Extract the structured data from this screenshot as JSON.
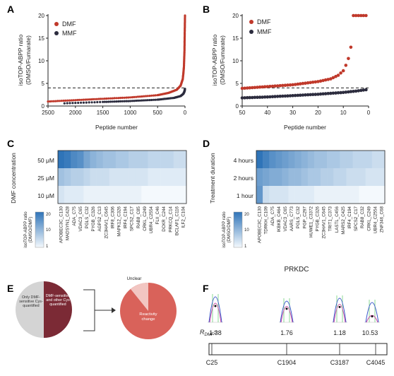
{
  "panels": {
    "A": {
      "label": "A",
      "ylabel_line1": "isoTOP-ABPP ratio",
      "ylabel_line2": "(DMSO/Fumarate)",
      "xlabel": "Peptide number",
      "xticks": [
        "2500",
        "2000",
        "1500",
        "1000",
        "500",
        "0"
      ],
      "yticks": [
        "0",
        "5",
        "10",
        "15",
        "20"
      ],
      "legend": [
        "DMF",
        "MMF"
      ]
    },
    "B": {
      "label": "B",
      "ylabel_line1": "isoTOP-ABPP ratio",
      "ylabel_line2": "(DMSO/Fumarate)",
      "xlabel": "Peptide number",
      "xticks": [
        "50",
        "40",
        "30",
        "20",
        "10",
        "0"
      ],
      "yticks": [
        "0",
        "5",
        "10",
        "15",
        "20"
      ],
      "legend": [
        "DMF",
        "MMF"
      ]
    },
    "C": {
      "label": "C",
      "ylabel": "DMF concentration",
      "rows": [
        "50 μM",
        "25 μM",
        "10 μM"
      ],
      "genes": [
        "APOBEC3C_C130",
        "MADSYN1_C428",
        "ADA_C75",
        "VDAC3_C65",
        "PGLS_C32",
        "PYGB_C326",
        "AGPS2_C13",
        "ZC3HAV1_C645",
        "IRF8_C306",
        "MAPK12_C326",
        "IRF4_C194",
        "SPCS2_C17",
        "RAB8_C85",
        "CRKL_C249",
        "UBR4_C2554",
        "FLII_C46",
        "DCKR_C244",
        "PRKCQ_C14",
        "BCLAF1_C116",
        "ILF2_C104"
      ],
      "colorbar_label_line1": "isoTOP-ABPP ratio",
      "colorbar_label_line2": "(DMSO/DMF)",
      "colorbar_ticks": [
        "20",
        "10",
        "1"
      ]
    },
    "D": {
      "label": "D",
      "ylabel": "Treatment duration",
      "rows": [
        "4 hours",
        "2 hours",
        "1 hour"
      ],
      "genes": [
        "APOBEC3C_C130",
        "TDRKH_C109",
        "ADA_C75",
        "IKBKB_C464",
        "VDAC3_C65",
        "AARS_C773",
        "PGLS_C32",
        "PGP_C297",
        "HUWE1_C3372",
        "PYGB_C326",
        "ZC3HAV1_C645",
        "TRIT1_C373",
        "LASTL_C456",
        "MARS2_C425",
        "IRF4_C194",
        "SPCS2_C17",
        "RAB8_C32",
        "CRKL_C249",
        "UBR4_C2554",
        "ZNF346_C68"
      ],
      "colorbar_label_line1": "isoTOP-ABPP ratio",
      "colorbar_label_line2": "(DMSO/DMF)",
      "colorbar_ticks": [
        "20",
        "10",
        "1"
      ]
    },
    "E": {
      "label": "E",
      "slice_gray": "Only DMF-sensitive Cys-quantified",
      "slice_dark": "DMF-sensitive and other Cys quantified",
      "unclear": "Unclear",
      "reactivity": "Reactivity change"
    },
    "F": {
      "label": "F",
      "title": "PRKDC",
      "ratio_label": "R",
      "ratio_sub": "DMF",
      "ratio_eq": "=",
      "values": [
        "1.38",
        "1.76",
        "1.18",
        "10.53"
      ],
      "sites": [
        "C25",
        "C1904",
        "C3187",
        "C4045"
      ]
    }
  },
  "chart_data": [
    {
      "type": "scatter",
      "panel": "A",
      "xlabel": "Peptide number",
      "ylabel": "isoTOP-ABPP ratio (DMSO/Fumarate)",
      "xlim": [
        2500,
        0
      ],
      "ylim": [
        0,
        20
      ],
      "threshold": 4,
      "series": [
        {
          "name": "DMF",
          "color": "#c0392b",
          "x": [
            2500,
            2000,
            1500,
            1000,
            500,
            300,
            150,
            80,
            40,
            20,
            10,
            5,
            0
          ],
          "values": [
            1.0,
            1.3,
            1.6,
            1.9,
            2.4,
            2.9,
            3.6,
            4.5,
            6,
            8.5,
            12,
            16,
            20
          ]
        },
        {
          "name": "MMF",
          "color": "#2c2c3e",
          "x": [
            2200,
            1500,
            1000,
            500,
            200,
            80,
            30,
            10,
            0
          ],
          "values": [
            0.6,
            0.9,
            1.1,
            1.4,
            1.8,
            2.2,
            2.7,
            3.2,
            3.8
          ]
        }
      ]
    },
    {
      "type": "scatter",
      "panel": "B",
      "xlabel": "Peptide number",
      "ylabel": "isoTOP-ABPP ratio (DMSO/Fumarate)",
      "xlim": [
        50,
        0
      ],
      "ylim": [
        0,
        20
      ],
      "threshold": 4,
      "series": [
        {
          "name": "DMF",
          "color": "#c0392b",
          "x": [
            50,
            40,
            30,
            20,
            15,
            12,
            10,
            9,
            8,
            7,
            6,
            5,
            4,
            3,
            2,
            1
          ],
          "values": [
            3.9,
            4.3,
            4.7,
            5.4,
            6.0,
            6.8,
            7.8,
            9,
            10.5,
            13,
            20,
            20,
            20,
            20,
            20,
            20
          ]
        },
        {
          "name": "MMF",
          "color": "#2c2c3e",
          "x": [
            50,
            40,
            30,
            20,
            10,
            5,
            1
          ],
          "values": [
            1.8,
            2.0,
            2.3,
            2.6,
            3.0,
            3.3,
            3.6
          ]
        }
      ]
    },
    {
      "type": "heatmap",
      "panel": "C",
      "rows": [
        "50 μM",
        "25 μM",
        "10 μM"
      ],
      "values": [
        [
          20,
          19,
          17,
          16,
          13,
          11,
          10,
          9,
          9,
          8,
          8,
          7,
          7,
          7,
          6,
          6,
          6,
          6,
          5,
          5
        ],
        [
          9,
          8,
          7,
          7,
          6,
          5,
          5,
          5,
          4,
          4,
          4,
          4,
          4,
          4,
          3,
          3,
          3,
          3,
          3,
          3
        ],
        [
          4,
          3,
          3,
          3,
          2,
          2,
          2,
          2,
          2,
          2,
          2,
          2,
          2,
          1,
          1,
          1,
          1,
          1,
          1,
          1
        ]
      ]
    },
    {
      "type": "heatmap",
      "panel": "D",
      "rows": [
        "4 hours",
        "2 hours",
        "1 hour"
      ],
      "values": [
        [
          20,
          18,
          16,
          15,
          14,
          13,
          12,
          11,
          10,
          9,
          9,
          8,
          8,
          7,
          7,
          6,
          6,
          6,
          5,
          5
        ],
        [
          14,
          13,
          12,
          12,
          11,
          10,
          10,
          9,
          8,
          8,
          7,
          7,
          6,
          6,
          5,
          5,
          5,
          4,
          4,
          4
        ],
        [
          15,
          5,
          4,
          4,
          4,
          3,
          3,
          3,
          3,
          2,
          2,
          2,
          2,
          2,
          2,
          2,
          1,
          1,
          1,
          1
        ]
      ]
    }
  ]
}
